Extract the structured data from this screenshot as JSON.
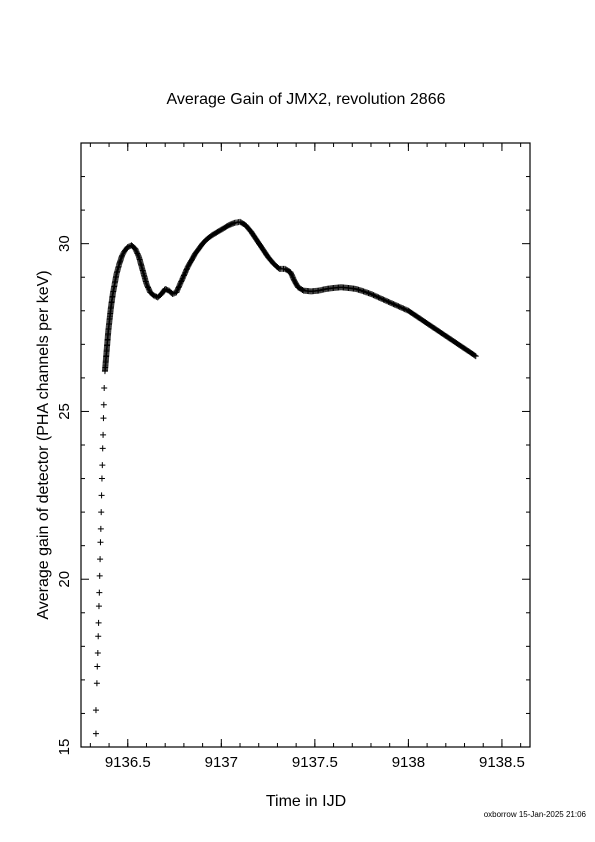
{
  "chart_data": {
    "type": "scatter",
    "marker": "plus",
    "title": "Average Gain of JMX2, revolution 2866",
    "xlabel": "Time in IJD",
    "ylabel": "Average gain of detector (PHA channels per keV)",
    "xlim": [
      9136.25,
      9138.65
    ],
    "ylim": [
      15,
      33
    ],
    "xticks": [
      {
        "value": 9136.5,
        "label": "9136.5"
      },
      {
        "value": 9137,
        "label": "9137"
      },
      {
        "value": 9137.5,
        "label": "9137.5"
      },
      {
        "value": 9138,
        "label": "9138"
      },
      {
        "value": 9138.5,
        "label": "9138.5"
      }
    ],
    "yticks": [
      {
        "value": 15,
        "label": "15"
      },
      {
        "value": 20,
        "label": "20"
      },
      {
        "value": 25,
        "label": "25"
      },
      {
        "value": 30,
        "label": "30"
      }
    ],
    "grid": false,
    "points": [
      [
        9136.33,
        15.4
      ],
      [
        9136.33,
        16.1
      ],
      [
        9136.335,
        16.9
      ],
      [
        9136.337,
        17.4
      ],
      [
        9136.34,
        17.8
      ],
      [
        9136.342,
        18.3
      ],
      [
        9136.344,
        18.7
      ],
      [
        9136.346,
        19.2
      ],
      [
        9136.348,
        19.6
      ],
      [
        9136.35,
        20.1
      ],
      [
        9136.352,
        20.6
      ],
      [
        9136.354,
        21.1
      ],
      [
        9136.356,
        21.5
      ],
      [
        9136.358,
        22.0
      ],
      [
        9136.36,
        22.5
      ],
      [
        9136.362,
        23.0
      ],
      [
        9136.364,
        23.4
      ],
      [
        9136.366,
        23.9
      ],
      [
        9136.368,
        24.3
      ],
      [
        9136.37,
        24.8
      ],
      [
        9136.372,
        25.2
      ],
      [
        9136.374,
        25.7
      ],
      [
        9136.378,
        26.2
      ],
      [
        9136.384,
        26.6
      ],
      [
        9136.39,
        27.0
      ],
      [
        9136.396,
        27.4
      ],
      [
        9136.402,
        27.7
      ],
      [
        9136.41,
        28.1
      ],
      [
        9136.42,
        28.5
      ],
      [
        9136.43,
        28.8
      ],
      [
        9136.44,
        29.1
      ],
      [
        9136.455,
        29.4
      ],
      [
        9136.47,
        29.65
      ],
      [
        9136.485,
        29.8
      ],
      [
        9136.5,
        29.9
      ],
      [
        9136.52,
        29.95
      ],
      [
        9136.54,
        29.85
      ],
      [
        9136.56,
        29.6
      ],
      [
        9136.58,
        29.2
      ],
      [
        9136.6,
        28.8
      ],
      [
        9136.62,
        28.55
      ],
      [
        9136.64,
        28.45
      ],
      [
        9136.66,
        28.4
      ],
      [
        9136.68,
        28.5
      ],
      [
        9136.7,
        28.65
      ],
      [
        9136.72,
        28.6
      ],
      [
        9136.74,
        28.5
      ],
      [
        9136.76,
        28.55
      ],
      [
        9136.78,
        28.8
      ],
      [
        9136.8,
        29.05
      ],
      [
        9136.82,
        29.3
      ],
      [
        9136.84,
        29.5
      ],
      [
        9136.86,
        29.7
      ],
      [
        9136.88,
        29.85
      ],
      [
        9136.9,
        30.0
      ],
      [
        9136.92,
        30.12
      ],
      [
        9136.95,
        30.25
      ],
      [
        9136.98,
        30.35
      ],
      [
        9137.01,
        30.45
      ],
      [
        9137.04,
        30.55
      ],
      [
        9137.07,
        30.62
      ],
      [
        9137.1,
        30.65
      ],
      [
        9137.13,
        30.55
      ],
      [
        9137.16,
        30.35
      ],
      [
        9137.19,
        30.1
      ],
      [
        9137.22,
        29.85
      ],
      [
        9137.25,
        29.6
      ],
      [
        9137.28,
        29.4
      ],
      [
        9137.31,
        29.25
      ],
      [
        9137.34,
        29.25
      ],
      [
        9137.37,
        29.15
      ],
      [
        9137.39,
        28.9
      ],
      [
        9137.41,
        28.7
      ],
      [
        9137.44,
        28.6
      ],
      [
        9137.48,
        28.58
      ],
      [
        9137.52,
        28.6
      ],
      [
        9137.56,
        28.65
      ],
      [
        9137.6,
        28.68
      ],
      [
        9137.64,
        28.7
      ],
      [
        9137.68,
        28.68
      ],
      [
        9137.72,
        28.65
      ],
      [
        9137.76,
        28.58
      ],
      [
        9137.8,
        28.5
      ],
      [
        9137.84,
        28.4
      ],
      [
        9137.88,
        28.3
      ],
      [
        9137.92,
        28.2
      ],
      [
        9137.96,
        28.1
      ],
      [
        9138.0,
        28.0
      ],
      [
        9138.04,
        27.85
      ],
      [
        9138.08,
        27.7
      ],
      [
        9138.12,
        27.55
      ],
      [
        9138.16,
        27.4
      ],
      [
        9138.2,
        27.25
      ],
      [
        9138.24,
        27.1
      ],
      [
        9138.28,
        26.95
      ],
      [
        9138.32,
        26.8
      ],
      [
        9138.36,
        26.65
      ]
    ]
  },
  "footer": "oxborrow 15-Jan-2025 21:06"
}
